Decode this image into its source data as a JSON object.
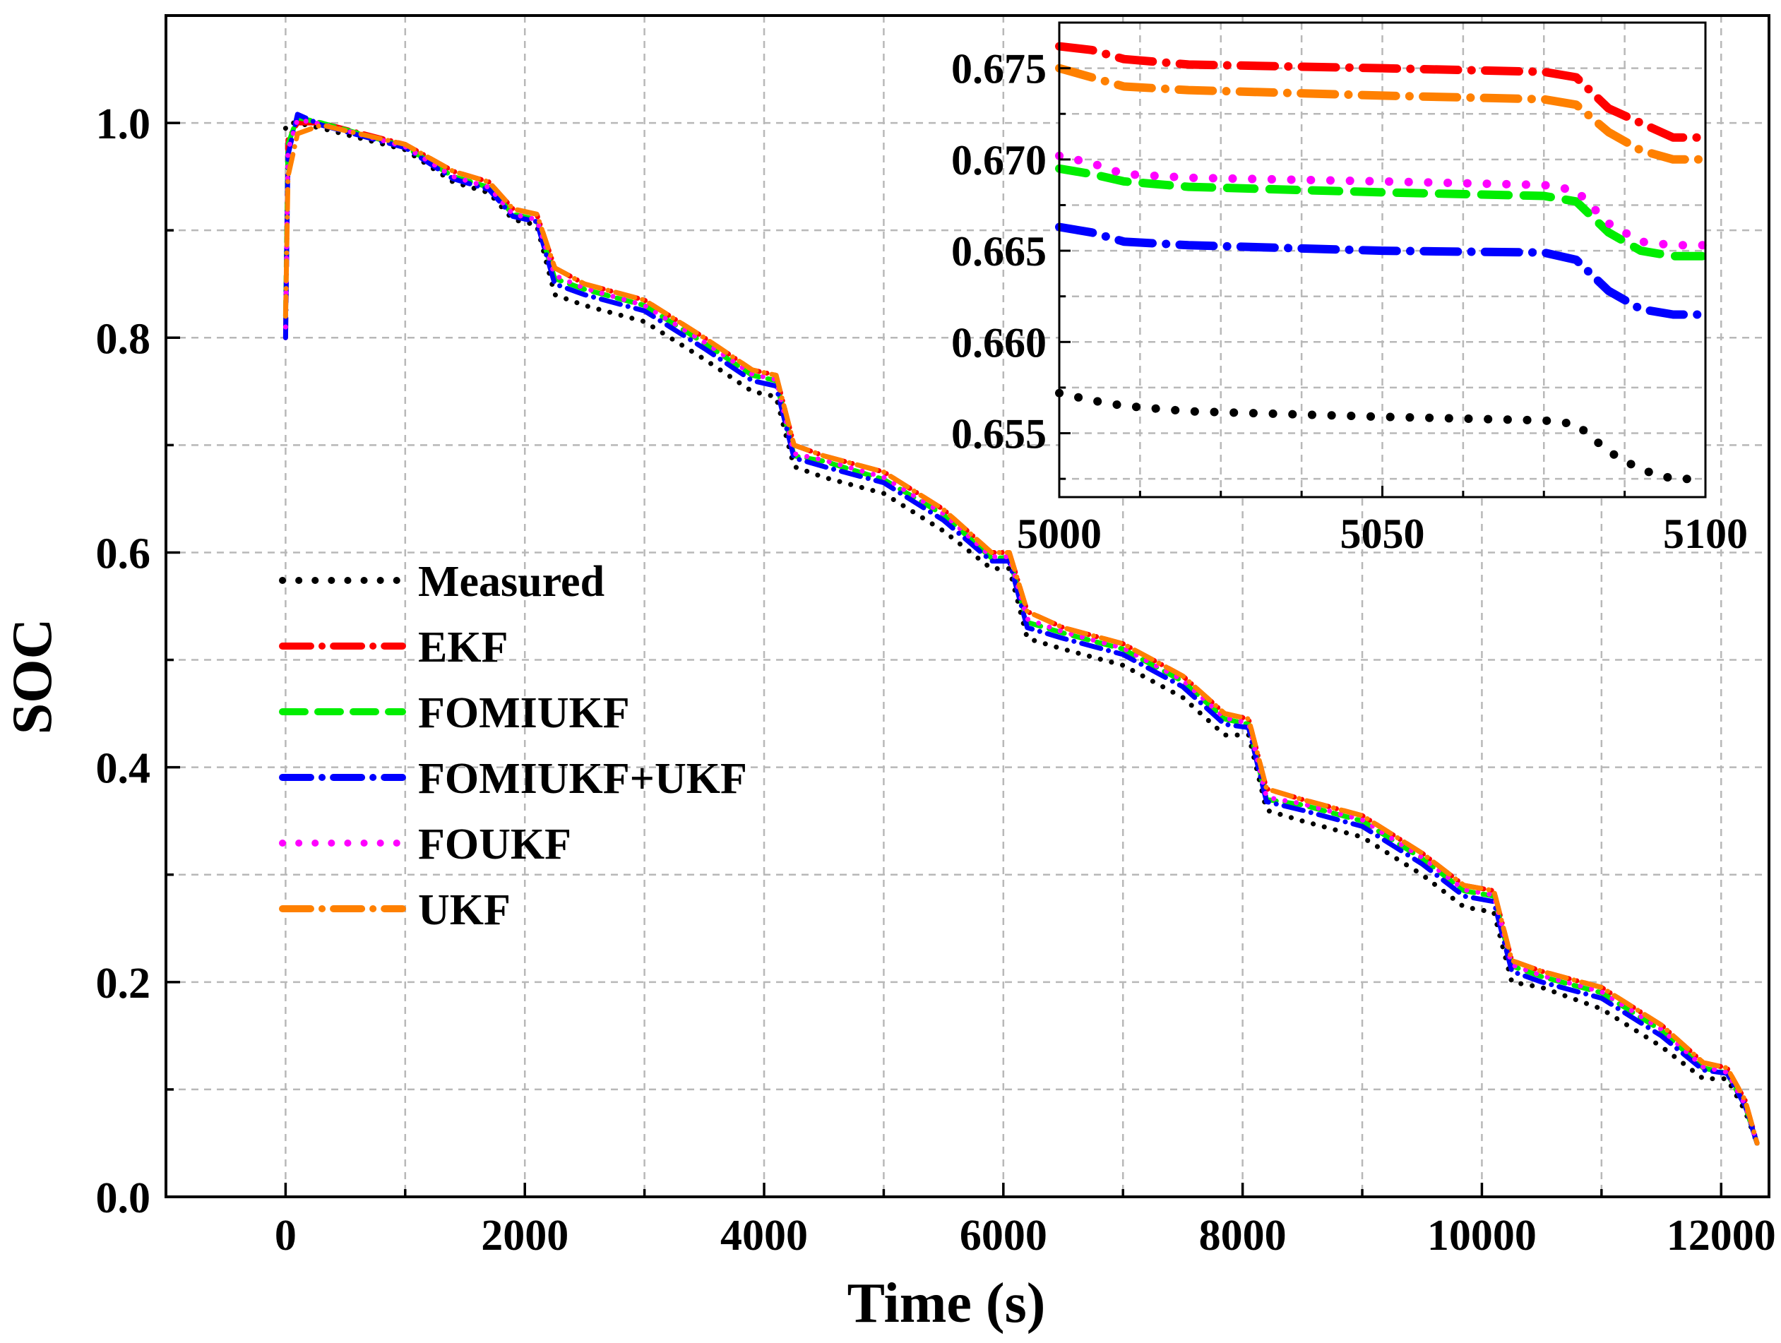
{
  "chart_data": {
    "type": "line",
    "xlabel": "Time (s)",
    "ylabel": "SOC",
    "xlim": [
      -1000,
      12400
    ],
    "ylim": [
      0.0,
      1.1
    ],
    "xticks": [
      0,
      2000,
      4000,
      6000,
      8000,
      10000,
      12000
    ],
    "xtick_labels": [
      "0",
      "2000",
      "4000",
      "6000",
      "8000",
      "10000",
      "12000"
    ],
    "yticks": [
      0.0,
      0.2,
      0.4,
      0.6,
      0.8,
      1.0
    ],
    "ytick_labels": [
      "0.0",
      "0.2",
      "0.4",
      "0.6",
      "0.8",
      "1.0"
    ],
    "grid": true,
    "legend_position": "middle-left",
    "legend": [
      "Measured",
      "EKF",
      "FOMIUKF",
      "FOMIUKF+UKF",
      "FOUKF",
      "UKF"
    ],
    "series": [
      {
        "name": "Measured",
        "color": "#000000",
        "style": "dot",
        "x": [
          0,
          20,
          100,
          300,
          1000,
          1400,
          1700,
          1900,
          2100,
          2250,
          2500,
          3000,
          3500,
          3900,
          4100,
          4250,
          4500,
          5000,
          5500,
          5900,
          6050,
          6200,
          6500,
          7000,
          7500,
          7850,
          8050,
          8200,
          8500,
          9000,
          9500,
          9850,
          10100,
          10250,
          10500,
          11000,
          11500,
          11850,
          12050,
          12200,
          12300
        ],
        "y": [
          0.995,
          1.0,
          1.0,
          0.995,
          0.975,
          0.945,
          0.935,
          0.91,
          0.905,
          0.84,
          0.83,
          0.815,
          0.78,
          0.75,
          0.745,
          0.68,
          0.67,
          0.655,
          0.62,
          0.585,
          0.585,
          0.52,
          0.51,
          0.495,
          0.465,
          0.43,
          0.43,
          0.36,
          0.35,
          0.335,
          0.3,
          0.27,
          0.265,
          0.2,
          0.195,
          0.175,
          0.14,
          0.11,
          0.11,
          0.08,
          0.05
        ]
      },
      {
        "name": "EKF",
        "color": "#ff0000",
        "style": "dashdot",
        "x": [
          0,
          20,
          100,
          300,
          1000,
          1400,
          1700,
          1900,
          2100,
          2250,
          2500,
          3000,
          3500,
          3900,
          4100,
          4250,
          4500,
          5000,
          5500,
          5900,
          6050,
          6200,
          6500,
          7000,
          7500,
          7850,
          8050,
          8200,
          8500,
          9000,
          9500,
          9850,
          10100,
          10250,
          10500,
          11000,
          11500,
          11850,
          12050,
          12200,
          12300
        ],
        "y": [
          0.8,
          0.985,
          1.0,
          1.0,
          0.98,
          0.955,
          0.945,
          0.92,
          0.915,
          0.865,
          0.85,
          0.835,
          0.8,
          0.77,
          0.765,
          0.7,
          0.69,
          0.675,
          0.64,
          0.6,
          0.6,
          0.545,
          0.53,
          0.515,
          0.485,
          0.45,
          0.445,
          0.38,
          0.37,
          0.355,
          0.32,
          0.29,
          0.285,
          0.22,
          0.21,
          0.195,
          0.16,
          0.125,
          0.12,
          0.09,
          0.05
        ]
      },
      {
        "name": "FOMIUKF",
        "color": "#00ee00",
        "style": "dash",
        "x": [
          0,
          20,
          100,
          300,
          1000,
          1400,
          1700,
          1900,
          2100,
          2250,
          2500,
          3000,
          3500,
          3900,
          4100,
          4250,
          4500,
          5000,
          5500,
          5900,
          6050,
          6200,
          6500,
          7000,
          7500,
          7850,
          8050,
          8200,
          8500,
          9000,
          9500,
          9850,
          10100,
          10250,
          10500,
          11000,
          11500,
          11850,
          12050,
          12200,
          12300
        ],
        "y": [
          0.82,
          0.98,
          1.005,
          1.0,
          0.978,
          0.95,
          0.94,
          0.915,
          0.91,
          0.855,
          0.845,
          0.83,
          0.795,
          0.765,
          0.76,
          0.69,
          0.685,
          0.668,
          0.635,
          0.595,
          0.595,
          0.535,
          0.525,
          0.51,
          0.48,
          0.445,
          0.44,
          0.37,
          0.365,
          0.35,
          0.315,
          0.285,
          0.28,
          0.215,
          0.205,
          0.19,
          0.155,
          0.12,
          0.115,
          0.085,
          0.05
        ]
      },
      {
        "name": "FOMIUKF+UKF",
        "color": "#0000ff",
        "style": "dashdot",
        "x": [
          0,
          20,
          100,
          300,
          1000,
          1400,
          1700,
          1900,
          2100,
          2250,
          2500,
          3000,
          3500,
          3900,
          4100,
          4250,
          4500,
          5000,
          5500,
          5900,
          6050,
          6200,
          6500,
          7000,
          7500,
          7850,
          8050,
          8200,
          8500,
          9000,
          9500,
          9850,
          10100,
          10250,
          10500,
          11000,
          11500,
          11850,
          12050,
          12200,
          12300
        ],
        "y": [
          0.8,
          0.97,
          1.008,
          0.998,
          0.977,
          0.948,
          0.938,
          0.913,
          0.908,
          0.85,
          0.84,
          0.825,
          0.79,
          0.76,
          0.755,
          0.688,
          0.68,
          0.665,
          0.63,
          0.592,
          0.592,
          0.53,
          0.52,
          0.505,
          0.475,
          0.44,
          0.437,
          0.368,
          0.36,
          0.345,
          0.31,
          0.28,
          0.275,
          0.21,
          0.2,
          0.185,
          0.15,
          0.118,
          0.115,
          0.085,
          0.05
        ]
      },
      {
        "name": "FOUKF",
        "color": "#ff00ff",
        "style": "dot",
        "x": [
          0,
          20,
          100,
          300,
          1000,
          1400,
          1700,
          1900,
          2100,
          2250,
          2500,
          3000,
          3500,
          3900,
          4100,
          4250,
          4500,
          5000,
          5500,
          5900,
          6050,
          6200,
          6500,
          7000,
          7500,
          7850,
          8050,
          8200,
          8500,
          9000,
          9500,
          9850,
          10100,
          10250,
          10500,
          11000,
          11500,
          11850,
          12050,
          12200,
          12300
        ],
        "y": [
          0.81,
          0.975,
          1.003,
          0.999,
          0.978,
          0.95,
          0.94,
          0.915,
          0.91,
          0.858,
          0.846,
          0.83,
          0.796,
          0.766,
          0.761,
          0.692,
          0.686,
          0.67,
          0.636,
          0.596,
          0.596,
          0.538,
          0.526,
          0.511,
          0.481,
          0.446,
          0.441,
          0.372,
          0.366,
          0.351,
          0.316,
          0.286,
          0.281,
          0.216,
          0.206,
          0.191,
          0.156,
          0.121,
          0.116,
          0.086,
          0.05
        ]
      },
      {
        "name": "UKF",
        "color": "#ff8000",
        "style": "dashdot",
        "x": [
          0,
          20,
          100,
          300,
          1000,
          1400,
          1700,
          1900,
          2100,
          2250,
          2500,
          3000,
          3500,
          3900,
          4100,
          4250,
          4500,
          5000,
          5500,
          5900,
          6050,
          6200,
          6500,
          7000,
          7500,
          7850,
          8050,
          8200,
          8500,
          9000,
          9500,
          9850,
          10100,
          10250,
          10500,
          11000,
          11500,
          11850,
          12050,
          12200,
          12300
        ],
        "y": [
          0.82,
          0.95,
          0.99,
          0.998,
          0.98,
          0.955,
          0.945,
          0.92,
          0.915,
          0.865,
          0.85,
          0.835,
          0.8,
          0.77,
          0.765,
          0.7,
          0.69,
          0.675,
          0.64,
          0.6,
          0.6,
          0.545,
          0.53,
          0.515,
          0.485,
          0.45,
          0.445,
          0.38,
          0.37,
          0.355,
          0.32,
          0.29,
          0.285,
          0.22,
          0.21,
          0.195,
          0.16,
          0.125,
          0.12,
          0.09,
          0.05
        ]
      }
    ],
    "inset": {
      "xlim": [
        5000,
        5100
      ],
      "ylim": [
        0.6515,
        0.6775
      ],
      "xticks": [
        5000,
        5050,
        5100
      ],
      "xtick_labels": [
        "5000",
        "5050",
        "5100"
      ],
      "yticks": [
        0.655,
        0.66,
        0.665,
        0.67,
        0.675
      ],
      "ytick_labels": [
        "0.655",
        "0.660",
        "0.665",
        "0.670",
        "0.675"
      ],
      "series": [
        {
          "name": "Measured",
          "x": [
            5000,
            5005,
            5010,
            5020,
            5050,
            5075,
            5080,
            5085,
            5090,
            5095,
            5100
          ],
          "y": [
            0.6572,
            0.6568,
            0.6565,
            0.6562,
            0.6559,
            0.6557,
            0.6555,
            0.654,
            0.653,
            0.6525,
            0.6525
          ]
        },
        {
          "name": "EKF",
          "x": [
            5000,
            5005,
            5010,
            5020,
            5050,
            5075,
            5080,
            5085,
            5090,
            5095,
            5100
          ],
          "y": [
            0.6762,
            0.676,
            0.6755,
            0.6752,
            0.675,
            0.6748,
            0.6745,
            0.6728,
            0.672,
            0.6712,
            0.6712
          ]
        },
        {
          "name": "FOMIUKF",
          "x": [
            5000,
            5005,
            5010,
            5020,
            5050,
            5075,
            5080,
            5085,
            5090,
            5095,
            5100
          ],
          "y": [
            0.6695,
            0.6692,
            0.6688,
            0.6685,
            0.6682,
            0.668,
            0.6677,
            0.666,
            0.665,
            0.6647,
            0.6647
          ]
        },
        {
          "name": "FOMIUKF+UKF",
          "x": [
            5000,
            5005,
            5010,
            5020,
            5050,
            5075,
            5080,
            5085,
            5090,
            5095,
            5100
          ],
          "y": [
            0.6663,
            0.666,
            0.6655,
            0.6653,
            0.665,
            0.6649,
            0.6645,
            0.6628,
            0.6618,
            0.6615,
            0.6615
          ]
        },
        {
          "name": "FOUKF",
          "x": [
            5000,
            5005,
            5010,
            5020,
            5050,
            5075,
            5080,
            5085,
            5090,
            5095,
            5100
          ],
          "y": [
            0.6702,
            0.6698,
            0.6692,
            0.669,
            0.6688,
            0.6686,
            0.6683,
            0.6665,
            0.6655,
            0.6653,
            0.6653
          ]
        },
        {
          "name": "UKF",
          "x": [
            5000,
            5005,
            5010,
            5020,
            5050,
            5075,
            5080,
            5085,
            5090,
            5095,
            5100
          ],
          "y": [
            0.675,
            0.6745,
            0.674,
            0.6738,
            0.6735,
            0.6733,
            0.673,
            0.6715,
            0.6705,
            0.67,
            0.67
          ]
        }
      ]
    }
  }
}
